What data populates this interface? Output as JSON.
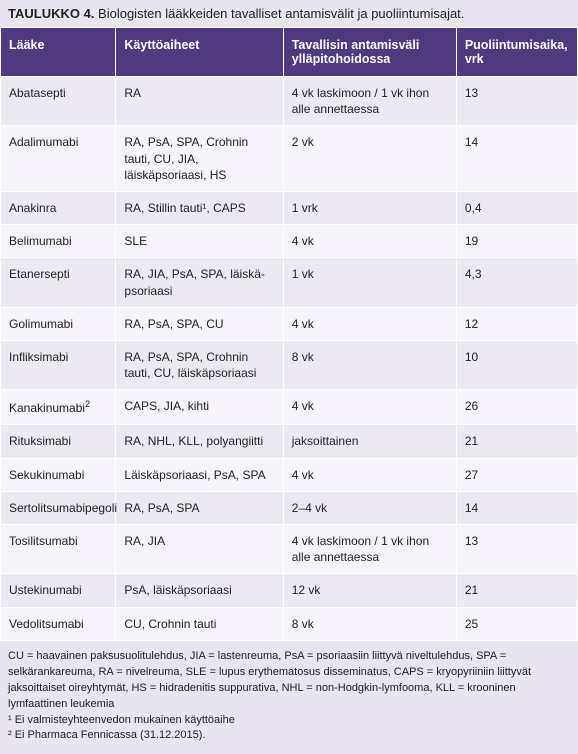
{
  "colors": {
    "header_bg": "#4f3a80",
    "title_bg": "#e8e4f0",
    "row_odd": "#ece9f3",
    "row_even": "#f6f4fa",
    "footer_bg": "#e8e4f0",
    "border": "#ffffff"
  },
  "layout": {
    "col_widths_pct": [
      20,
      29,
      30,
      21
    ]
  },
  "title_prefix": "TAULUKKO 4.",
  "title_rest": " Biologisten lääkkeiden tavalliset antamisvälit ja puoliintumisajat.",
  "columns": [
    "Lääke",
    "Käyttöaiheet",
    "Tavallisin antamisväli ylläpitohoidossa",
    "Puoliintumisaika, vrk"
  ],
  "rows": [
    {
      "drug": "Abatasepti",
      "drug_sup": "",
      "ind": "RA",
      "dose": "4 vk laskimoon / 1 vk ihon alle annettaessa",
      "hl": "13"
    },
    {
      "drug": "Adalimumabi",
      "drug_sup": "",
      "ind": "RA, PsA, SPA, Crohnin tauti, CU, JIA, läiskäpsoriaasi, HS",
      "dose": "2 vk",
      "hl": "14"
    },
    {
      "drug": "Anakinra",
      "drug_sup": "",
      "ind": "RA, Stillin tauti¹, CAPS",
      "dose": "1 vrk",
      "hl": "0,4"
    },
    {
      "drug": "Belimumabi",
      "drug_sup": "",
      "ind": "SLE",
      "dose": "4 vk",
      "hl": "19"
    },
    {
      "drug": "Etanersepti",
      "drug_sup": "",
      "ind": "RA, JIA, PsA, SPA, läiskä­psoriaasi",
      "dose": "1 vk",
      "hl": "4,3"
    },
    {
      "drug": "Golimumabi",
      "drug_sup": "",
      "ind": "RA, PsA, SPA, CU",
      "dose": "4 vk",
      "hl": "12"
    },
    {
      "drug": "Infliksimabi",
      "drug_sup": "",
      "ind": "RA, PsA, SPA, Crohnin tauti, CU, läiskäpsoriaasi",
      "dose": "8 vk",
      "hl": "10"
    },
    {
      "drug": "Kanakinumabi",
      "drug_sup": "2",
      "ind": "CAPS, JIA, kihti",
      "dose": "4 vk",
      "hl": "26"
    },
    {
      "drug": "Rituksimabi",
      "drug_sup": "",
      "ind": "RA, NHL, KLL, polyangiitti",
      "dose": "jaksoittainen",
      "hl": "21"
    },
    {
      "drug": "Sekukinumabi",
      "drug_sup": "",
      "ind": "Läiskäpsoriaasi, PsA, SPA",
      "dose": "4 vk",
      "hl": "27"
    },
    {
      "drug": "Sertolitsumabipegoli",
      "drug_sup": "",
      "ind": "RA, PsA, SPA",
      "dose": "2–4 vk",
      "hl": "14"
    },
    {
      "drug": "Tosilitsumabi",
      "drug_sup": "",
      "ind": "RA, JIA",
      "dose": "4 vk laskimoon / 1 vk ihon alle annettaessa",
      "hl": "13"
    },
    {
      "drug": "Ustekinumabi",
      "drug_sup": "",
      "ind": "PsA, läiskäpsoriaasi",
      "dose": "12 vk",
      "hl": "21"
    },
    {
      "drug": "Vedolitsumabi",
      "drug_sup": "",
      "ind": "CU, Crohnin tauti",
      "dose": "8 vk",
      "hl": "25"
    }
  ],
  "footer": {
    "line1": "CU = haavainen paksusuolitulehdus, JIA = lastenreuma, PsA = psoriaasiin liittyvä niveltulehdus, SPA = selkärankareuma, RA = nivelreuma, SLE = lupus erythematosus disseminatus, CAPS = kryopyriiniin liittyvät jaksoittaiset oireyhtymät, HS = hidradenitis suppurativa, NHL =  non-Hodgkin-lymfooma, KLL = krooninen lymfaattinen leukemia",
    "line2": "¹ Ei valmisteyhteenvedon mukainen käyttöaihe",
    "line3": "² Ei Pharmaca Fennicassa (31.12.2015)."
  }
}
